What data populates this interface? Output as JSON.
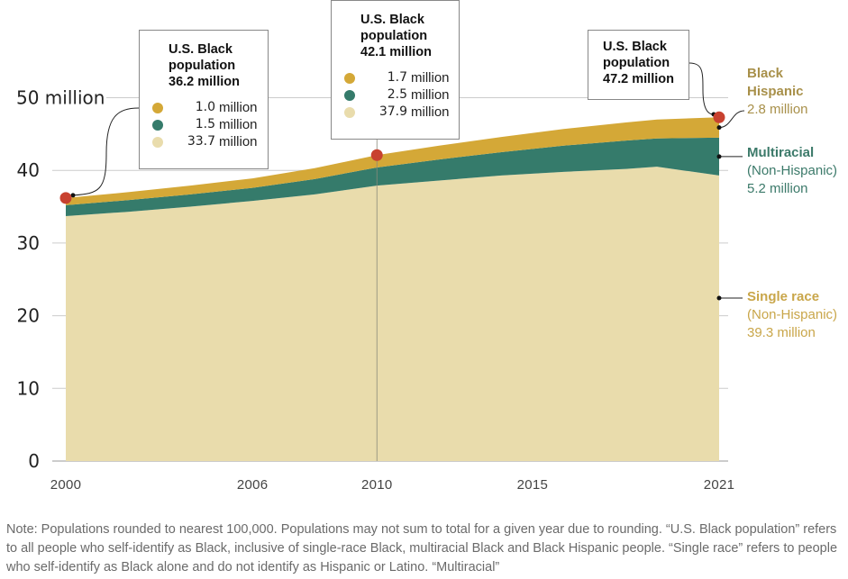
{
  "chart_data": {
    "type": "area",
    "stacked": true,
    "title": "",
    "xlabel": "",
    "ylabel": "",
    "ylim": [
      0,
      50
    ],
    "y_ticks": [
      0,
      10,
      20,
      30,
      40,
      50
    ],
    "y_tick_labels": [
      "0",
      "10",
      "20",
      "30",
      "40",
      "50 million"
    ],
    "x_ticks": [
      2000,
      2006,
      2010,
      2015,
      2021
    ],
    "x_tick_labels": [
      "2000",
      "2006",
      "2010",
      "2015",
      "2021"
    ],
    "grid": true,
    "x": [
      2000,
      2002,
      2004,
      2006,
      2008,
      2010,
      2012,
      2014,
      2016,
      2018,
      2019,
      2021
    ],
    "series": [
      {
        "name": "Single race (Non-Hispanic)",
        "color": "#E9DCAC",
        "values": [
          33.7,
          34.3,
          35.0,
          35.8,
          36.7,
          37.9,
          38.6,
          39.3,
          39.8,
          40.2,
          40.5,
          39.3
        ]
      },
      {
        "name": "Multiracial (Non-Hispanic)",
        "color": "#357B6B",
        "values": [
          1.5,
          1.6,
          1.7,
          1.8,
          2.1,
          2.5,
          2.9,
          3.2,
          3.6,
          3.9,
          3.9,
          5.2
        ]
      },
      {
        "name": "Black Hispanic",
        "color": "#D4A837",
        "values": [
          1.0,
          1.1,
          1.2,
          1.3,
          1.5,
          1.7,
          1.9,
          2.1,
          2.3,
          2.5,
          2.6,
          2.8
        ]
      }
    ],
    "annotations": [
      {
        "year": 2000,
        "title": "U.S. Black population",
        "total": "36.2 million",
        "breakdown": [
          "1.0 million",
          "1.5 million",
          "33.7 million"
        ]
      },
      {
        "year": 2010,
        "title": "U.S. Black population",
        "total": "42.1 million",
        "breakdown": [
          "1.7 million",
          "2.5 million",
          "37.9 million"
        ]
      },
      {
        "year": 2021,
        "title": "U.S. Black population",
        "total": "47.2 million",
        "breakdown": []
      }
    ],
    "end_labels": [
      {
        "name": "Black Hispanic",
        "sub": "",
        "value": "2.8 million"
      },
      {
        "name": "Multiracial",
        "sub": "(Non-Hispanic)",
        "value": "5.2 million"
      },
      {
        "name": "Single race",
        "sub": "(Non-Hispanic)",
        "value": "39.3 million"
      }
    ]
  },
  "colors": {
    "hispanic": "#D4A837",
    "multiracial": "#357B6B",
    "single": "#E9DCAC",
    "marker": "#C8412F",
    "hispanic_text": "#A8904A",
    "multiracial_text": "#3C7A6A",
    "single_text": "#C9A64A"
  },
  "boxes": {
    "b2000": {
      "l1": "U.S. Black",
      "l2": "population",
      "l3": "36.2 million",
      "r1": "1.0",
      "r2": "1.5",
      "r3": "33.7",
      "unit": "million"
    },
    "b2010": {
      "l1": "U.S. Black",
      "l2": "population",
      "l3": "42.1 million",
      "r1": "1.7",
      "r2": "2.5",
      "r3": "37.9",
      "unit": "million"
    },
    "b2021": {
      "l1": "U.S. Black",
      "l2": "population",
      "l3": "47.2 million"
    }
  },
  "labels": {
    "hisp_1": "Black",
    "hisp_2": "Hispanic",
    "hisp_v": "2.8 million",
    "multi_1": "Multiracial",
    "multi_2": "(Non-Hispanic)",
    "multi_v": "5.2 million",
    "single_1": "Single race",
    "single_2": "(Non-Hispanic)",
    "single_v": "39.3 million"
  },
  "note": "Note: Populations rounded to nearest 100,000. Populations may not sum to total for a given year due to rounding. “U.S. Black population” refers to all people who self-identify as Black, inclusive of single-race Black, multiracial Black and Black Hispanic people. “Single race” refers to people who self-identify as Black alone and do not identify as Hispanic or Latino. “Multiracial”"
}
